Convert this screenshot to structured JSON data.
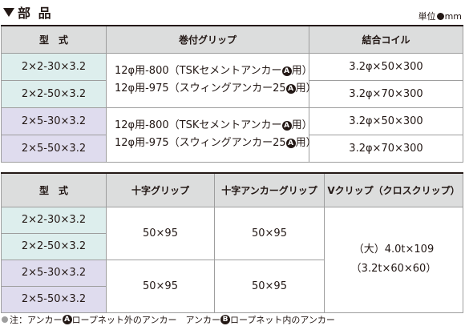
{
  "section_title": "部 品",
  "unit_label": {
    "prefix": "単位",
    "suffix": "mm"
  },
  "table1": {
    "headers": [
      "型　式",
      "巻付グリップ",
      "結合コイル"
    ],
    "group1": {
      "models": [
        "2×2-30×3.2",
        "2×2-50×3.2"
      ],
      "grip_line1_pre": "12φ用-800（TSKセメントアンカー",
      "grip_line2_pre": "12φ用-975（スウィングアンカー25",
      "circle_letter": "A",
      "grip_suffix": "用）",
      "coils": [
        "3.2φ×50×300",
        "3.2φ×70×300"
      ]
    },
    "group2": {
      "models": [
        "2×5-30×3.2",
        "2×5-50×3.2"
      ],
      "grip_line1_pre": "12φ用-800（TSKセメントアンカー",
      "grip_line2_pre": "12φ用-975（スウィングアンカー25",
      "circle_letter": "A",
      "grip_suffix": "用）",
      "coils": [
        "3.2φ×50×300",
        "3.2φ×70×300"
      ]
    }
  },
  "table2": {
    "headers": [
      "型　式",
      "十字グリップ",
      "十字アンカーグリップ",
      "Vクリップ（クロスクリップ）"
    ],
    "group1": {
      "models": [
        "2×2-30×3.2",
        "2×2-50×3.2"
      ],
      "cross_grip": "50×95",
      "cross_anchor_grip": "50×95"
    },
    "group2": {
      "models": [
        "2×5-30×3.2",
        "2×5-50×3.2"
      ],
      "cross_grip": "50×95",
      "cross_anchor_grip": "50×95"
    },
    "v_clip_line1": "（大）4.0t×109",
    "v_clip_line2": "（3.2t×60×60）"
  },
  "note": {
    "text1": "注：アンカー",
    "letter_a": "A",
    "text2": " ロープネット外のアンカー　アンカー",
    "letter_b": "B",
    "text3": " ロープネット内のアンカー"
  },
  "colors": {
    "model_group_1": "#ddeeed",
    "model_group_2": "#dfdcee",
    "header": "#dcdddd"
  }
}
